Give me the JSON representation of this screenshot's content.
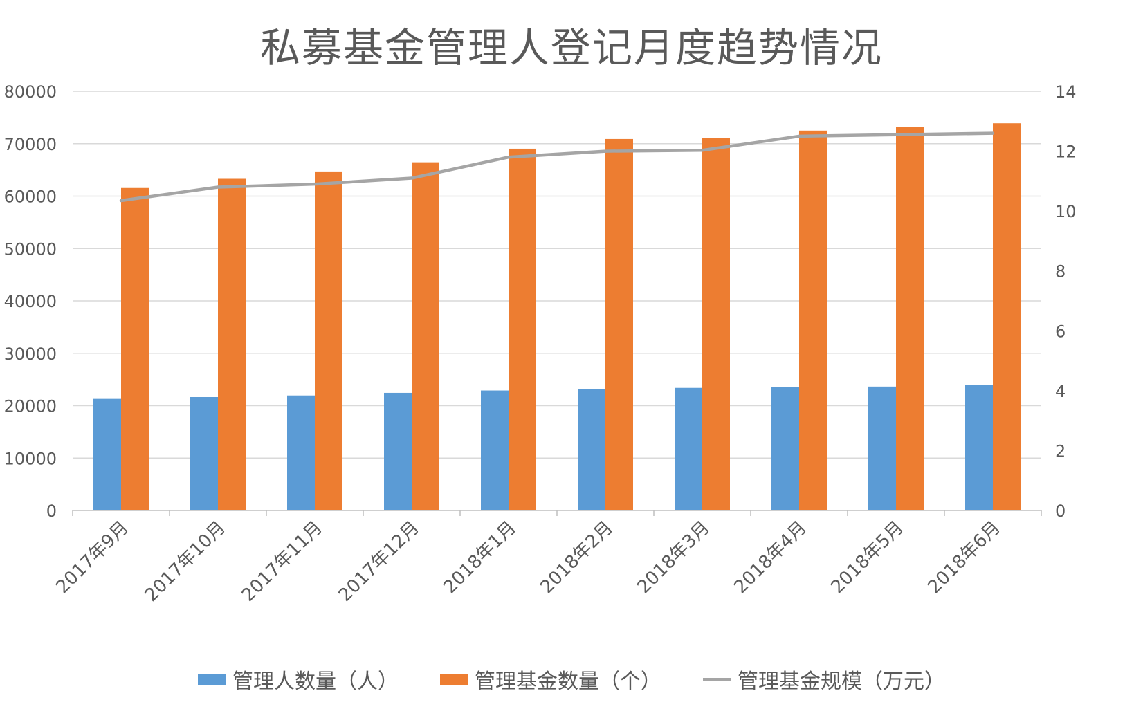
{
  "chart_data": {
    "type": "bar",
    "title": "私募基金管理人登记月度趋势情况",
    "categories": [
      "2017年9月",
      "2017年10月",
      "2017年11月",
      "2017年12月",
      "2018年1月",
      "2018年2月",
      "2018年3月",
      "2018年4月",
      "2018年5月",
      "2018年6月"
    ],
    "series": [
      {
        "name": "管理人数量（人）",
        "type": "bar",
        "axis": "left",
        "color": "#5B9BD5",
        "values": [
          21300,
          21650,
          21950,
          22450,
          22900,
          23150,
          23400,
          23550,
          23650,
          23900
        ]
      },
      {
        "name": "管理基金数量（个）",
        "type": "bar",
        "axis": "left",
        "color": "#ED7D31",
        "values": [
          61550,
          63300,
          64700,
          66450,
          69050,
          70900,
          71100,
          72500,
          73250,
          73900
        ]
      },
      {
        "name": "管理基金规模（万元）",
        "type": "line",
        "axis": "right",
        "color": "#A5A5A5",
        "values": [
          10.35,
          10.8,
          10.9,
          11.1,
          11.8,
          12.0,
          12.03,
          12.5,
          12.55,
          12.6
        ]
      }
    ],
    "y_left": {
      "min": 0,
      "max": 80000,
      "ticks": [
        "0",
        "10000",
        "20000",
        "30000",
        "40000",
        "50000",
        "60000",
        "70000",
        "80000"
      ]
    },
    "y_right": {
      "min": 0,
      "max": 14,
      "ticks": [
        "0",
        "2",
        "4",
        "6",
        "8",
        "10",
        "12",
        "14"
      ]
    },
    "grid": true,
    "legend_position": "bottom",
    "colors": {
      "grid": "#D9D9D9",
      "axis_text": "#595959",
      "title": "#595959"
    }
  }
}
